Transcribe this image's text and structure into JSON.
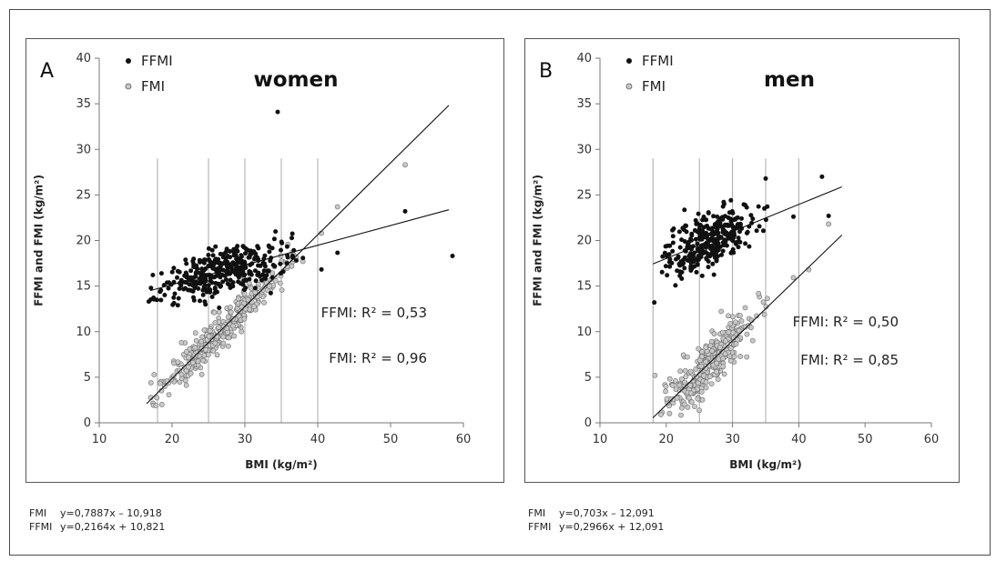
{
  "chart_data": [
    {
      "type": "scatter",
      "panel_letter": "A",
      "title": "women",
      "xlabel": "BMI (kg/m²)",
      "ylabel": "FFMI and FMI (kg/m²)",
      "xlim": [
        10,
        60
      ],
      "ylim": [
        0,
        40
      ],
      "xticks": [
        "10",
        "20",
        "30",
        "40",
        "50",
        "60"
      ],
      "yticks": [
        "0",
        "5",
        "10",
        "15",
        "20",
        "25",
        "30",
        "35",
        "40"
      ],
      "vertical_reference_lines": [
        18,
        25,
        30,
        35,
        40
      ],
      "legend_placement": "top-left",
      "grid": false,
      "series": [
        {
          "name": "FFMI",
          "color": "#111111",
          "marker": "filled-circle",
          "fit": {
            "slope": 0.2164,
            "intercept": 10.821,
            "x_range": [
              17,
              58
            ],
            "r2_label": "FFMI: R² = 0,53"
          },
          "clusters": [
            {
              "x_mean": 27,
              "x_sd": 5.2,
              "x_min": 16.8,
              "x_max": 48,
              "resid_sd": 1.35,
              "n": 360
            }
          ],
          "outliers": [
            [
              34.5,
              34.1
            ],
            [
              58.5,
              18.3
            ],
            [
              52,
              23.2
            ],
            [
              16.8,
              13.3
            ]
          ]
        },
        {
          "name": "FMI",
          "color": "#bdbdbd",
          "marker": "open-circle",
          "fit": {
            "slope": 0.7887,
            "intercept": -10.918,
            "x_range": [
              16.5,
              58
            ],
            "r2_label": "FMI: R² = 0,96"
          },
          "clusters": [
            {
              "x_mean": 27,
              "x_sd": 5.2,
              "x_min": 16.8,
              "x_max": 48.5,
              "resid_sd": 1.0,
              "n": 360
            }
          ],
          "outliers": [
            [
              52,
              28.3
            ],
            [
              17.8,
              1.9
            ],
            [
              18.6,
              2.0
            ]
          ]
        }
      ],
      "equations": [
        {
          "name": "FMI",
          "text": "y=0,7887x – 10,918"
        },
        {
          "name": "FFMI",
          "text": "y=0,2164x + 10,821"
        }
      ]
    },
    {
      "type": "scatter",
      "panel_letter": "B",
      "title": "men",
      "xlabel": "BMI (kg/m²)",
      "ylabel": "FFMI and FMI (kg/m²)",
      "xlim": [
        10,
        60
      ],
      "ylim": [
        0,
        40
      ],
      "xticks": [
        "10",
        "20",
        "30",
        "40",
        "50",
        "60"
      ],
      "yticks": [
        "0",
        "5",
        "10",
        "15",
        "20",
        "25",
        "30",
        "35",
        "40"
      ],
      "vertical_reference_lines": [
        18,
        25,
        30,
        35,
        40
      ],
      "legend_placement": "top-left",
      "grid": false,
      "series": [
        {
          "name": "FFMI",
          "color": "#111111",
          "marker": "filled-circle",
          "fit": {
            "slope": 0.2966,
            "intercept": 12.091,
            "x_range": [
              18,
              46.5
            ],
            "r2_label": "FFMI: R² = 0,50"
          },
          "clusters": [
            {
              "x_mean": 26.5,
              "x_sd": 4.3,
              "x_min": 18.5,
              "x_max": 45,
              "resid_sd": 1.5,
              "n": 330
            }
          ],
          "outliers": [
            [
              18.2,
              13.2
            ],
            [
              35,
              26.8
            ],
            [
              43.5,
              27.0
            ],
            [
              44.5,
              22.7
            ]
          ]
        },
        {
          "name": "FMI",
          "color": "#bdbdbd",
          "marker": "open-circle",
          "fit": {
            "slope": 0.703,
            "intercept": -12.091,
            "x_range": [
              18,
              46.5
            ],
            "r2_label": "FMI: R² = 0,85"
          },
          "clusters": [
            {
              "x_mean": 26.5,
              "x_sd": 4.3,
              "x_min": 18.5,
              "x_max": 45,
              "resid_sd": 1.4,
              "n": 330
            }
          ],
          "outliers": [
            [
              18.3,
              5.2
            ],
            [
              19.2,
              0.9
            ],
            [
              44.5,
              21.8
            ],
            [
              41.5,
              16.8
            ]
          ]
        }
      ],
      "equations": [
        {
          "name": "FMI",
          "text": "y=0,703x – 12,091"
        },
        {
          "name": "FFMI",
          "text": "y=0,2966x + 12,091"
        }
      ]
    }
  ]
}
